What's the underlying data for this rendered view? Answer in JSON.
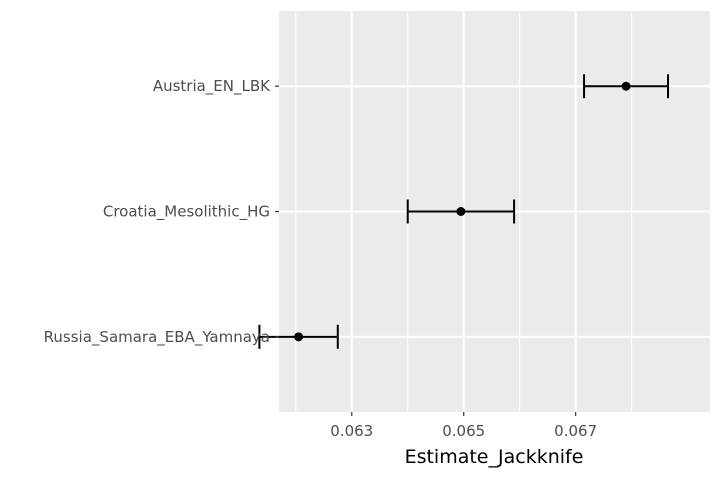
{
  "chart_data": {
    "type": "errorbar",
    "title": "",
    "xlabel": "Estimate_Jackknife",
    "ylabel": "",
    "xlim": [
      0.0617,
      0.0694
    ],
    "x_ticks": [
      0.063,
      0.065,
      0.067
    ],
    "x_tick_labels": [
      "0.063",
      "0.065",
      "0.067"
    ],
    "grid": true,
    "legend": "none",
    "categories": [
      "Austria_EN_LBK",
      "Croatia_Mesolithic_HG",
      "Russia_Samara_EBA_Yamnaya"
    ],
    "points": [
      {
        "category": "Austria_EN_LBK",
        "estimate": 0.0679,
        "lower": 0.06715,
        "upper": 0.06865
      },
      {
        "category": "Croatia_Mesolithic_HG",
        "estimate": 0.06495,
        "lower": 0.064,
        "upper": 0.0659
      },
      {
        "category": "Russia_Samara_EBA_Yamnaya",
        "estimate": 0.06205,
        "lower": 0.06135,
        "upper": 0.06275
      }
    ],
    "colors": {
      "panel": "#ebebeb",
      "grid": "#ffffff",
      "mark": "#000000",
      "tick_text": "#4d4d4d"
    }
  }
}
